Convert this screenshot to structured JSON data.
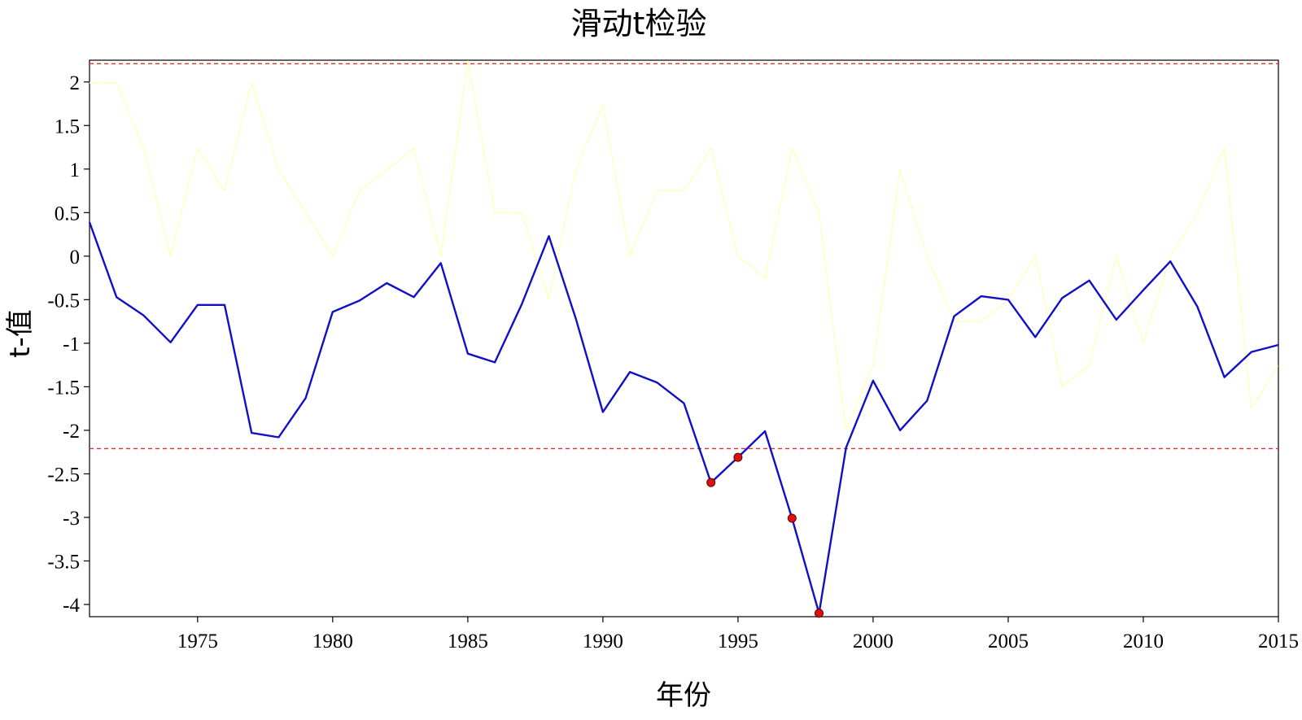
{
  "chart_data": {
    "type": "line",
    "title": "滑动t检验",
    "xlabel": "年份",
    "ylabel": "t-值",
    "xlim": [
      1971,
      2015
    ],
    "ylim": [
      -4.14,
      2.25
    ],
    "x_ticks": [
      "1975",
      "1980",
      "1985",
      "1990",
      "1995",
      "2000",
      "2005",
      "2010",
      "2015"
    ],
    "y_ticks": [
      "2",
      "1.5",
      "1",
      "0.5",
      "0",
      "-0.5",
      "-1",
      "-1.5",
      "-2",
      "-2.5",
      "-3",
      "-3.5",
      "-4"
    ],
    "grid": false,
    "x": [
      1971,
      1972,
      1973,
      1974,
      1975,
      1976,
      1977,
      1978,
      1979,
      1980,
      1981,
      1982,
      1983,
      1984,
      1985,
      1986,
      1987,
      1988,
      1989,
      1990,
      1991,
      1992,
      1993,
      1994,
      1995,
      1996,
      1997,
      1998,
      1999,
      2000,
      2001,
      2002,
      2003,
      2004,
      2005,
      2006,
      2007,
      2008,
      2009,
      2010,
      2011,
      2012,
      2013,
      2014,
      2015
    ],
    "series": [
      {
        "values": [
          0.39,
          -0.47,
          -0.68,
          -0.99,
          -0.56,
          -0.56,
          -2.03,
          -2.08,
          -1.63,
          -0.64,
          -0.51,
          -0.31,
          -0.47,
          -0.08,
          -1.12,
          -1.22,
          -0.55,
          0.23,
          -0.72,
          -1.79,
          -1.33,
          -1.45,
          -1.69,
          -2.6,
          -2.31,
          -2.01,
          -3.01,
          -4.1,
          -2.2,
          -1.43,
          -2.0,
          -1.66,
          -0.69,
          -0.46,
          -0.5,
          -0.93,
          -0.48,
          -0.28,
          -0.73,
          -0.39,
          -0.06,
          -0.58,
          -1.39,
          -1.1,
          -1.02
        ],
        "color": "#1010c8",
        "style": "solid"
      },
      {
        "values": [
          1.99,
          1.99,
          1.24,
          0.0,
          1.24,
          0.75,
          1.99,
          0.99,
          0.5,
          0.0,
          0.75,
          0.99,
          1.24,
          0.0,
          2.24,
          0.5,
          0.5,
          -0.49,
          0.99,
          1.74,
          0.0,
          0.75,
          0.75,
          1.24,
          0.0,
          -0.25,
          1.24,
          0.5,
          -2.0,
          -1.25,
          0.99,
          0.0,
          -0.75,
          -0.75,
          -0.5,
          0.0,
          -1.5,
          -1.25,
          0.0,
          -1.0,
          0.0,
          0.5,
          1.24,
          -1.75,
          -1.25
        ],
        "color": "#ffff99",
        "style": "dotted"
      }
    ],
    "highlighted_points": [
      {
        "x": 1994,
        "y": -2.6
      },
      {
        "x": 1995,
        "y": -2.31
      },
      {
        "x": 1997,
        "y": -3.01
      },
      {
        "x": 1998,
        "y": -4.1
      }
    ],
    "thresholds": [
      2.21,
      -2.21
    ],
    "colors": {
      "threshold": "#e03030",
      "highlight": "#e01010",
      "highlight_edge": "#600000",
      "axis": "#000000"
    }
  }
}
